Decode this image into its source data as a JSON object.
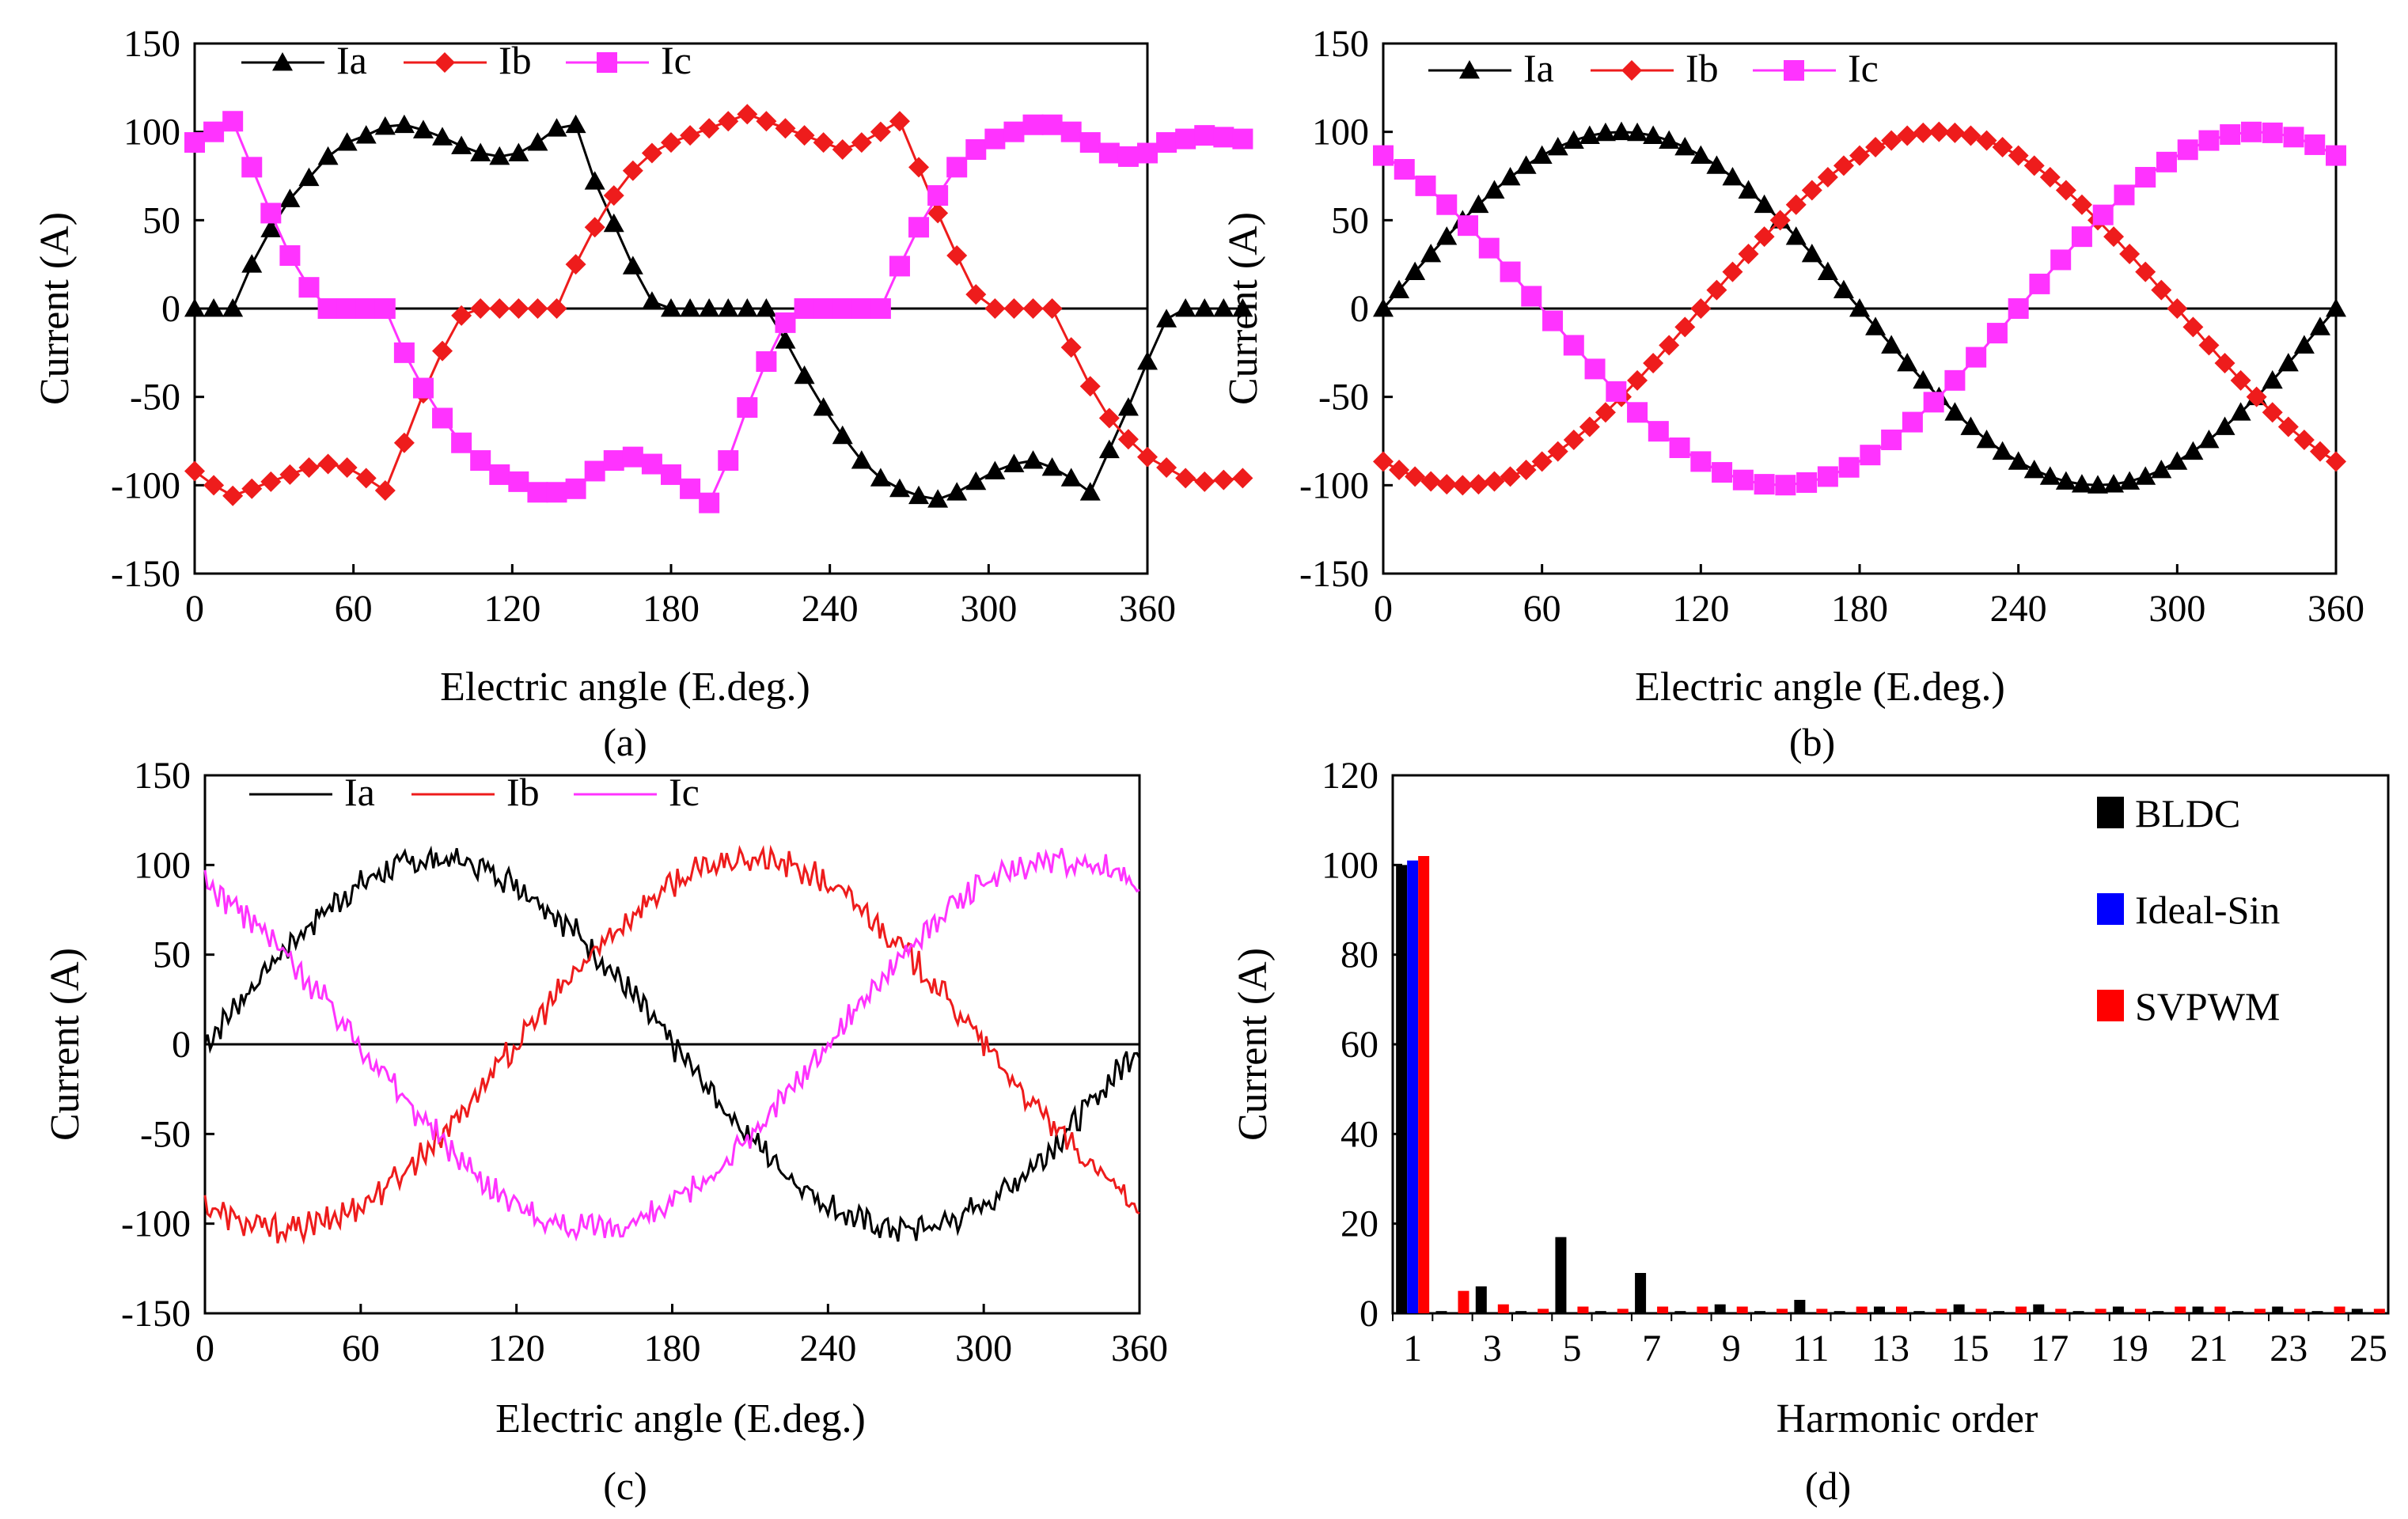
{
  "chart_data": [
    {
      "panel": "a",
      "type": "line",
      "caption": "(a)",
      "xlabel": "Electric angle (E.deg.)",
      "ylabel": "Current (A)",
      "xlim": [
        0,
        360
      ],
      "ylim": [
        -150,
        150
      ],
      "xticks": [
        "0",
        "60",
        "120",
        "180",
        "240",
        "300",
        "360"
      ],
      "yticks": [
        "-150",
        "-100",
        "-50",
        "0",
        "50",
        "100",
        "150"
      ],
      "legend": [
        "Ia",
        "Ib",
        "Ic"
      ],
      "series": [
        {
          "name": "Ia",
          "color": "#000000",
          "marker": "triangle",
          "x_step": 7.2,
          "values": [
            0,
            0,
            0,
            25,
            45,
            62,
            74,
            86,
            94,
            98,
            103,
            104,
            101,
            97,
            92,
            88,
            86,
            88,
            94,
            102,
            104,
            72,
            48,
            24,
            4,
            0,
            0,
            0,
            0,
            0,
            0,
            -18,
            -38,
            -56,
            -72,
            -86,
            -96,
            -102,
            -106,
            -108,
            -104,
            -98,
            -92,
            -88,
            -86,
            -90,
            -96,
            -104,
            -80,
            -56,
            -30,
            -6,
            0,
            0,
            0,
            0
          ]
        },
        {
          "name": "Ib",
          "color": "#ee1c1c",
          "marker": "diamond",
          "x_step": 7.2,
          "values": [
            -92,
            -100,
            -106,
            -102,
            -98,
            -94,
            -90,
            -88,
            -90,
            -96,
            -103,
            -76,
            -48,
            -24,
            -4,
            0,
            0,
            0,
            0,
            0,
            25,
            46,
            64,
            78,
            88,
            94,
            98,
            102,
            106,
            110,
            106,
            102,
            98,
            94,
            90,
            94,
            100,
            106,
            80,
            54,
            30,
            8,
            0,
            0,
            0,
            0,
            -22,
            -44,
            -62,
            -74,
            -84,
            -90,
            -96,
            -98,
            -97,
            -96
          ]
        },
        {
          "name": "Ic",
          "color": "#ff33ff",
          "marker": "square",
          "x_step": 7.2,
          "values": [
            94,
            100,
            106,
            80,
            54,
            30,
            12,
            0,
            0,
            0,
            0,
            -25,
            -45,
            -62,
            -76,
            -86,
            -94,
            -98,
            -104,
            -104,
            -102,
            -92,
            -86,
            -84,
            -88,
            -94,
            -102,
            -110,
            -86,
            -56,
            -30,
            -8,
            0,
            0,
            0,
            0,
            0,
            24,
            46,
            64,
            80,
            90,
            96,
            100,
            104,
            104,
            100,
            94,
            88,
            86,
            88,
            94,
            96,
            98,
            97,
            96
          ]
        }
      ]
    },
    {
      "panel": "b",
      "type": "line",
      "caption": "(b)",
      "xlabel": "Electric angle (E.deg.)",
      "ylabel": "Current (A)",
      "xlim": [
        0,
        360
      ],
      "ylim": [
        -150,
        150
      ],
      "xticks": [
        "0",
        "60",
        "120",
        "180",
        "240",
        "300",
        "360"
      ],
      "yticks": [
        "-150",
        "-100",
        "-50",
        "0",
        "50",
        "100",
        "150"
      ],
      "legend": [
        "Ia",
        "Ib",
        "Ic"
      ],
      "series": [
        {
          "name": "Ia",
          "color": "#000000",
          "marker": "triangle",
          "x_step": 6,
          "amplitude": 100,
          "phase_deg": 0
        },
        {
          "name": "Ib",
          "color": "#ee1c1c",
          "marker": "diamond",
          "x_step": 6,
          "amplitude": 100,
          "phase_deg": -120
        },
        {
          "name": "Ic",
          "color": "#ff33ff",
          "marker": "square",
          "x_step": 8,
          "amplitude": 100,
          "phase_deg": 120
        }
      ]
    },
    {
      "panel": "c",
      "type": "line",
      "caption": "(c)",
      "xlabel": "Electric angle (E.deg.)",
      "ylabel": "Current (A)",
      "xlim": [
        0,
        360
      ],
      "ylim": [
        -150,
        150
      ],
      "xticks": [
        "0",
        "60",
        "120",
        "180",
        "240",
        "300",
        "360"
      ],
      "yticks": [
        "-150",
        "-100",
        "-50",
        "0",
        "50",
        "100",
        "150"
      ],
      "legend": [
        "Ia",
        "Ib",
        "Ic"
      ],
      "series": [
        {
          "name": "Ia",
          "color": "#000000",
          "amplitude": 103,
          "phase_deg": 0,
          "ripple": 6
        },
        {
          "name": "Ib",
          "color": "#ee1c1c",
          "amplitude": 103,
          "phase_deg": -120,
          "ripple": 6
        },
        {
          "name": "Ic",
          "color": "#ff33ff",
          "amplitude": 103,
          "phase_deg": 120,
          "ripple": 6
        }
      ]
    },
    {
      "panel": "d",
      "type": "bar",
      "caption": "(d)",
      "xlabel": "Harmonic order",
      "ylabel": "Current (A)",
      "ylim": [
        0,
        120
      ],
      "yticks": [
        "0",
        "20",
        "40",
        "60",
        "80",
        "100",
        "120"
      ],
      "categories": [
        "1",
        "2",
        "3",
        "4",
        "5",
        "6",
        "7",
        "8",
        "9",
        "10",
        "11",
        "12",
        "13",
        "14",
        "15",
        "16",
        "17",
        "18",
        "19",
        "20",
        "21",
        "22",
        "23",
        "24",
        "25"
      ],
      "xticks": [
        "1",
        "3",
        "5",
        "7",
        "9",
        "11",
        "13",
        "15",
        "17",
        "19",
        "21",
        "23",
        "25"
      ],
      "legend": [
        "BLDC",
        "Ideal-Sin",
        "SVPWM"
      ],
      "series": [
        {
          "name": "BLDC",
          "color": "#000000",
          "values": [
            100,
            0.5,
            6,
            0.5,
            17,
            0.5,
            9,
            0.5,
            2,
            0.5,
            3,
            0.5,
            1.5,
            0.5,
            2,
            0.5,
            2,
            0.5,
            1.5,
            0.5,
            1.5,
            0.5,
            1.5,
            0.5,
            1
          ]
        },
        {
          "name": "Ideal-Sin",
          "color": "#0000ff",
          "values": [
            101,
            0,
            0,
            0,
            0,
            0,
            0,
            0,
            0,
            0,
            0,
            0,
            0,
            0,
            0,
            0,
            0,
            0,
            0,
            0,
            0,
            0,
            0,
            0,
            0
          ]
        },
        {
          "name": "SVPWM",
          "color": "#ff0000",
          "values": [
            102,
            5,
            2,
            1,
            1.5,
            1,
            1.5,
            1.5,
            1.5,
            1,
            1,
            1.5,
            1.5,
            1,
            1,
            1.5,
            1,
            1,
            1,
            1.5,
            1.5,
            1,
            1,
            1.5,
            1
          ]
        }
      ]
    }
  ]
}
